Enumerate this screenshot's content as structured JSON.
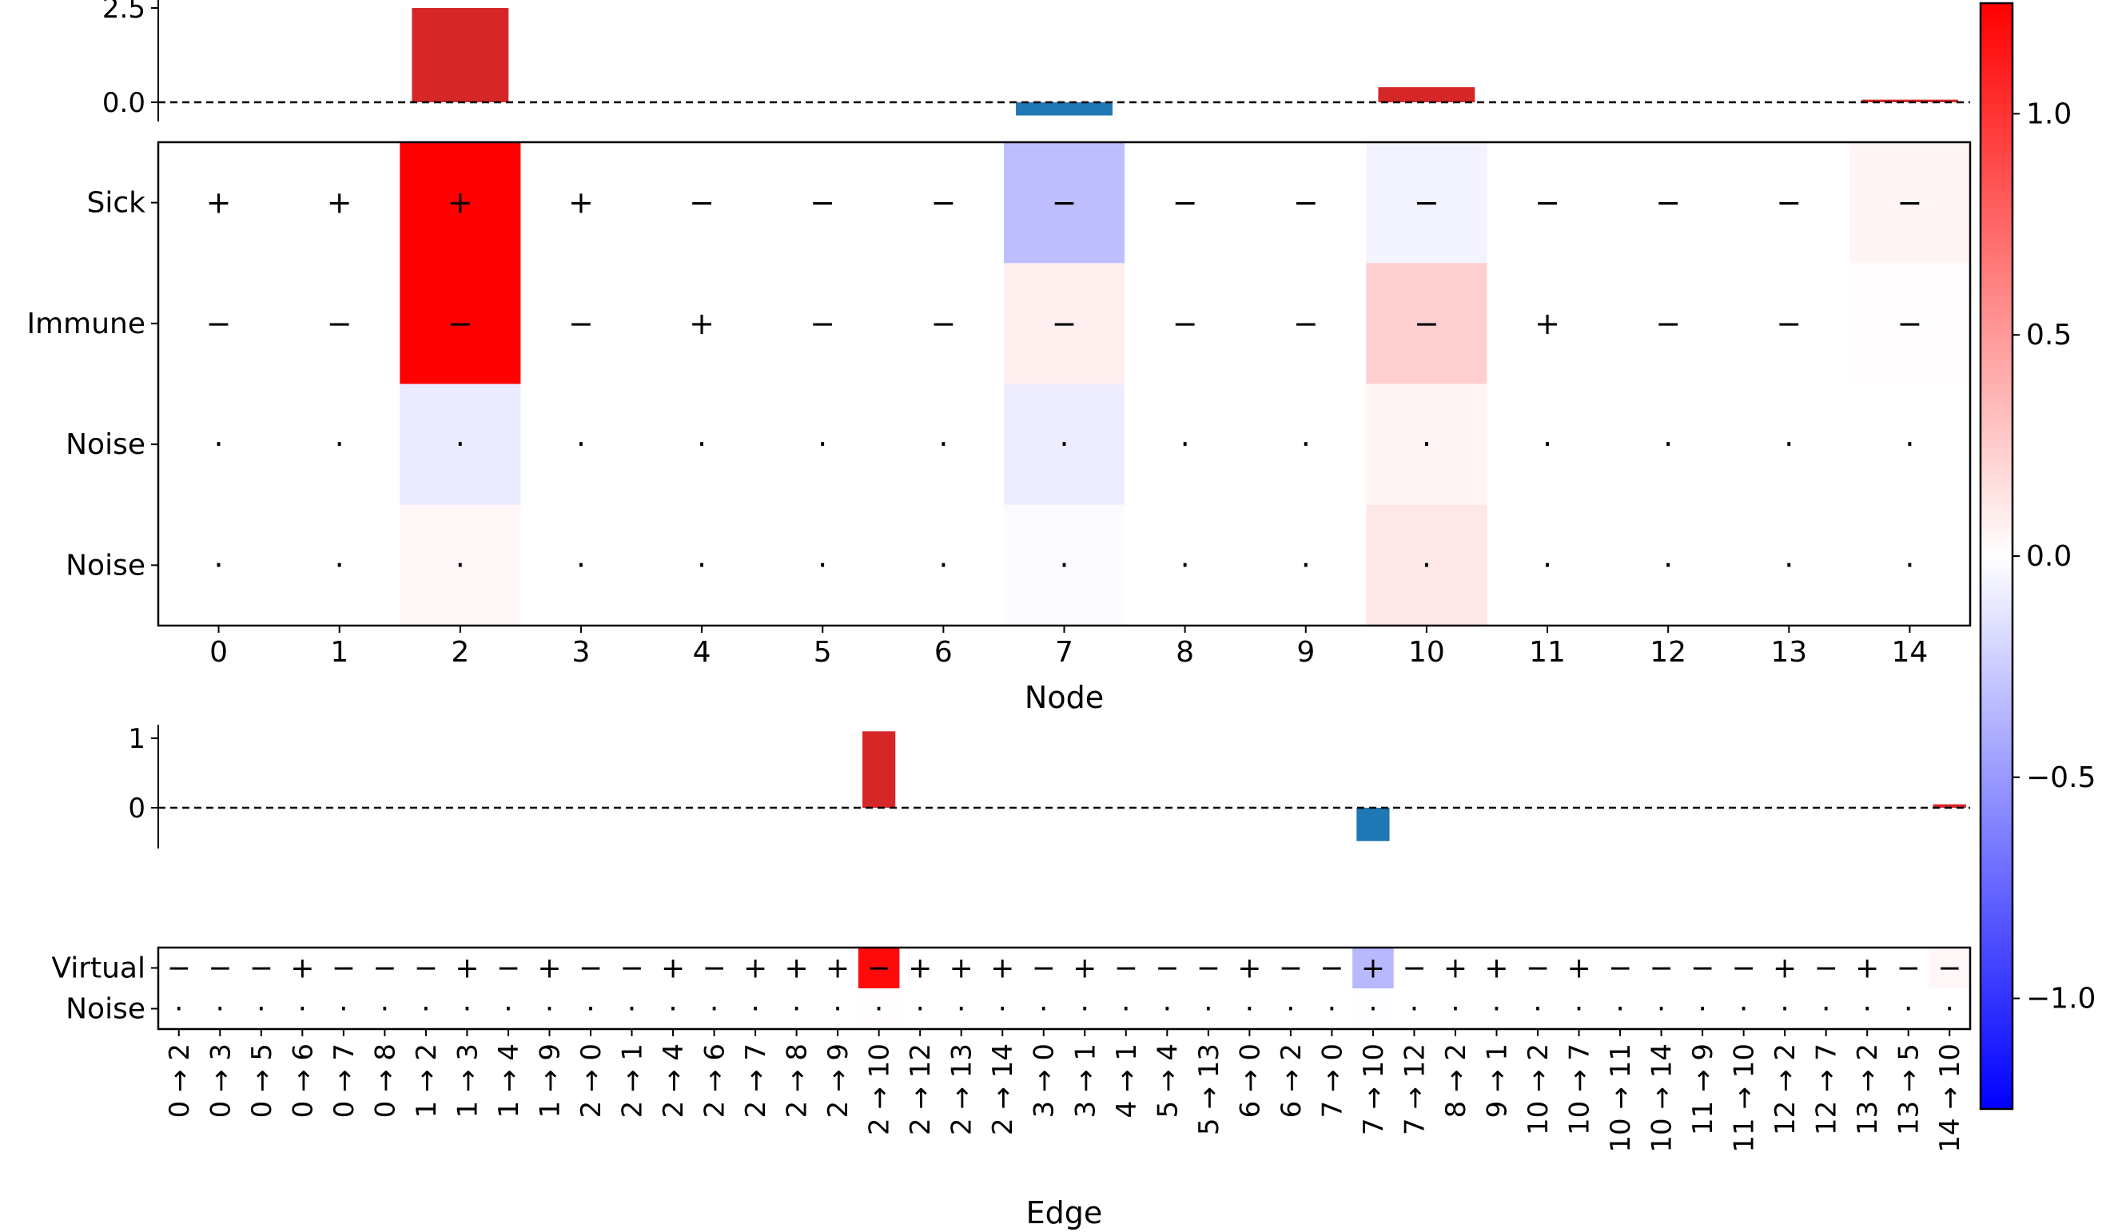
{
  "colors": {
    "bar_positive": "#d62728",
    "bar_negative": "#1f77b4",
    "cmap_negative": "#0000ff",
    "cmap_zero": "#ffffff",
    "cmap_positive": "#ff0000"
  },
  "chart_data": [
    {
      "type": "bar",
      "id": "node-bars",
      "categories": [
        "0",
        "1",
        "2",
        "3",
        "4",
        "5",
        "6",
        "7",
        "8",
        "9",
        "10",
        "11",
        "12",
        "13",
        "14"
      ],
      "values": [
        0,
        0,
        2.5,
        0,
        0,
        0,
        0,
        -0.35,
        0,
        0,
        0.4,
        0,
        0,
        0,
        0.07
      ],
      "y_ticks": [
        0.0,
        2.5
      ],
      "y_tick_labels": [
        "0.0",
        "2.5"
      ],
      "ylim": [
        -0.5,
        2.65
      ],
      "reference_line": 0,
      "grid": false
    },
    {
      "type": "heatmap",
      "id": "node-heatmap",
      "xlabel": "Node",
      "x_tick_labels": [
        "0",
        "1",
        "2",
        "3",
        "4",
        "5",
        "6",
        "7",
        "8",
        "9",
        "10",
        "11",
        "12",
        "13",
        "14"
      ],
      "row_labels": [
        "Sick",
        "Immune",
        "Noise",
        "Noise"
      ],
      "values": [
        [
          0,
          0,
          1.25,
          0,
          0,
          0,
          0,
          -0.32,
          0,
          0,
          -0.06,
          0,
          0,
          0,
          0.05
        ],
        [
          0,
          0,
          1.25,
          0,
          0,
          0,
          0,
          0.08,
          0,
          0,
          0.24,
          0,
          0,
          0,
          0.01
        ],
        [
          0,
          0,
          -0.1,
          0,
          0,
          0,
          0,
          -0.09,
          0,
          0,
          0.05,
          0,
          0,
          0,
          0
        ],
        [
          0,
          0,
          0.04,
          0,
          0,
          0,
          0,
          -0.02,
          0,
          0,
          0.12,
          0,
          0,
          0,
          0
        ]
      ],
      "symbols": [
        [
          "+",
          "+",
          "+",
          "+",
          "−",
          "−",
          "−",
          "−",
          "−",
          "−",
          "−",
          "−",
          "−",
          "−",
          "−"
        ],
        [
          "−",
          "−",
          "−",
          "−",
          "+",
          "−",
          "−",
          "−",
          "−",
          "−",
          "−",
          "+",
          "−",
          "−",
          "−"
        ],
        [
          "·",
          "·",
          "·",
          "·",
          "·",
          "·",
          "·",
          "·",
          "·",
          "·",
          "·",
          "·",
          "·",
          "·",
          "·"
        ],
        [
          "·",
          "·",
          "·",
          "·",
          "·",
          "·",
          "·",
          "·",
          "·",
          "·",
          "·",
          "·",
          "·",
          "·",
          "·"
        ]
      ]
    },
    {
      "type": "bar",
      "id": "edge-bars",
      "categories": [
        "0 → 2",
        "0 → 3",
        "0 → 5",
        "0 → 6",
        "0 → 7",
        "0 → 8",
        "1 → 2",
        "1 → 3",
        "1 → 4",
        "1 → 9",
        "2 → 0",
        "2 → 1",
        "2 → 4",
        "2 → 6",
        "2 → 7",
        "2 → 8",
        "2 → 9",
        "2 → 10",
        "2 → 12",
        "2 → 13",
        "2 → 14",
        "3 → 0",
        "3 → 1",
        "4 → 1",
        "5 → 4",
        "5 → 13",
        "6 → 0",
        "6 → 2",
        "7 → 0",
        "7 → 10",
        "7 → 12",
        "8 → 2",
        "9 → 1",
        "10 → 2",
        "10 → 7",
        "10 → 11",
        "10 → 14",
        "11 → 9",
        "11 → 10",
        "12 → 2",
        "12 → 7",
        "13 → 2",
        "13 → 5",
        "14 → 10"
      ],
      "values": [
        0,
        0,
        0,
        0,
        0,
        0,
        0,
        0,
        0,
        0,
        0,
        0,
        0,
        0,
        0,
        0,
        0,
        1.1,
        0,
        0,
        0,
        0,
        0,
        0,
        0,
        0,
        0,
        0,
        0,
        -0.48,
        0,
        0,
        0,
        0,
        0,
        0,
        0,
        0,
        0,
        0,
        0,
        0,
        0,
        0.05
      ],
      "y_ticks": [
        0,
        1
      ],
      "y_tick_labels": [
        "0",
        "1"
      ],
      "ylim": [
        -0.6,
        1.2
      ],
      "reference_line": 0,
      "grid": false
    },
    {
      "type": "heatmap",
      "id": "edge-heatmap",
      "xlabel": "Edge",
      "row_labels": [
        "Virtual",
        "Noise"
      ],
      "values": [
        [
          0,
          0,
          0,
          0,
          0,
          0,
          0,
          0,
          0,
          0,
          0,
          0,
          0,
          0,
          0,
          0,
          0,
          1.2,
          0,
          0,
          0,
          0,
          0,
          0,
          0,
          0,
          0,
          0,
          0,
          -0.35,
          0,
          0,
          0,
          0,
          0,
          0,
          0,
          0,
          0,
          0,
          0,
          0,
          0,
          0.04
        ],
        [
          0,
          0,
          0,
          0,
          0,
          0,
          0,
          0,
          0,
          0,
          0,
          0,
          0,
          0,
          0,
          0,
          0,
          0.01,
          0,
          0,
          0,
          0,
          0,
          0,
          0,
          0,
          0,
          0,
          0,
          -0.01,
          0,
          0,
          0,
          0,
          0,
          0,
          0,
          0,
          0,
          0,
          0,
          0,
          0,
          0
        ]
      ],
      "symbols": [
        [
          "−",
          "−",
          "−",
          "+",
          "−",
          "−",
          "−",
          "+",
          "−",
          "+",
          "−",
          "−",
          "+",
          "−",
          "+",
          "+",
          "+",
          "−",
          "+",
          "+",
          "+",
          "−",
          "+",
          "−",
          "−",
          "−",
          "+",
          "−",
          "−",
          "+",
          "−",
          "+",
          "+",
          "−",
          "+",
          "−",
          "−",
          "−",
          "−",
          "+",
          "−",
          "+",
          "−",
          "−"
        ],
        [
          "·",
          "·",
          "·",
          "·",
          "·",
          "·",
          "·",
          "·",
          "·",
          "·",
          "·",
          "·",
          "·",
          "·",
          "·",
          "·",
          "·",
          "·",
          "·",
          "·",
          "·",
          "·",
          "·",
          "·",
          "·",
          "·",
          "·",
          "·",
          "·",
          "·",
          "·",
          "·",
          "·",
          "·",
          "·",
          "·",
          "·",
          "·",
          "·",
          "·",
          "·",
          "·",
          "·",
          "·"
        ]
      ]
    },
    {
      "type": "colorbar",
      "id": "colorbar",
      "range": [
        -1.25,
        1.25
      ],
      "ticks": [
        -1.0,
        -0.5,
        0.0,
        0.5,
        1.0
      ],
      "tick_labels": [
        "−1.0",
        "−0.5",
        "0.0",
        "0.5",
        "1.0"
      ]
    }
  ]
}
